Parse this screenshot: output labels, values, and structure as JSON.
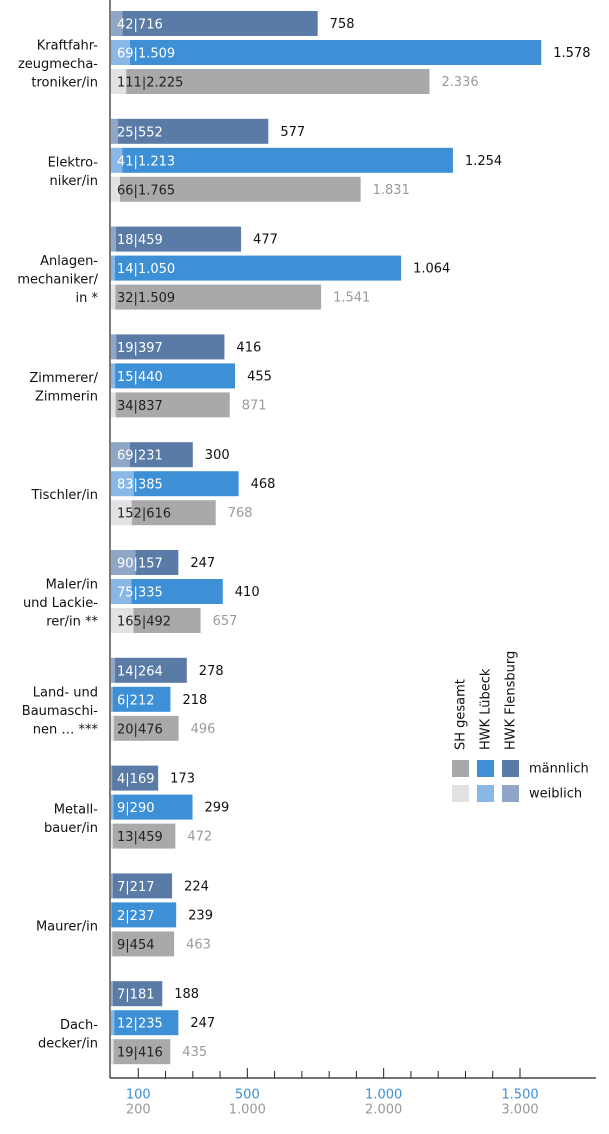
{
  "chart_data": {
    "type": "stacked-bar-horizontal",
    "categories": [
      [
        "Kraftfahr-",
        "zeugmecha-",
        "troniker/in"
      ],
      [
        "Elektro-",
        "niker/in"
      ],
      [
        "Anlagen-",
        "mechaniker/",
        "in *"
      ],
      [
        "Zimmerer/",
        "Zimmerin"
      ],
      [
        "Tischler/in"
      ],
      [
        "Maler/in",
        "und Lackie-",
        "rer/in **"
      ],
      [
        "Land- und",
        "Baumaschi-",
        "nen … ***"
      ],
      [
        "Metall-",
        "bauer/in"
      ],
      [
        "Maurer/in"
      ],
      [
        "Dach-",
        "decker/in"
      ]
    ],
    "separator": "|",
    "groups": [
      {
        "name": "HWK Flensburg",
        "axis": "x",
        "color_female": "#8fa6c6",
        "color_male": "#5a7ba6",
        "text_color": "#ffffff",
        "total_color": "#111111",
        "female": [
          42,
          25,
          18,
          19,
          69,
          90,
          14,
          4,
          7,
          7
        ],
        "male": [
          716,
          552,
          459,
          397,
          231,
          157,
          264,
          169,
          217,
          181
        ],
        "male_labels": [
          "716",
          "552",
          "459",
          "397",
          "231",
          "157",
          "264",
          "169",
          "217",
          "181"
        ],
        "totals": [
          758,
          577,
          477,
          416,
          300,
          247,
          278,
          173,
          224,
          188
        ],
        "total_labels": [
          "758",
          "577",
          "477",
          "416",
          "300",
          "247",
          "278",
          "173",
          "224",
          "188"
        ]
      },
      {
        "name": "HWK Lübeck",
        "axis": "x",
        "color_female": "#8ab8e6",
        "color_male": "#3d8fd6",
        "text_color": "#ffffff",
        "total_color": "#111111",
        "female": [
          69,
          41,
          14,
          15,
          83,
          75,
          6,
          9,
          2,
          12
        ],
        "male": [
          1509,
          1213,
          1050,
          440,
          385,
          335,
          212,
          290,
          237,
          235
        ],
        "male_labels": [
          "1.509",
          "1.213",
          "1.050",
          "440",
          "385",
          "335",
          "212",
          "290",
          "237",
          "235"
        ],
        "totals": [
          1578,
          1254,
          1064,
          455,
          468,
          410,
          218,
          299,
          239,
          247
        ],
        "total_labels": [
          "1.578",
          "1.254",
          "1.064",
          "455",
          "468",
          "410",
          "218",
          "299",
          "239",
          "247"
        ]
      },
      {
        "name": "SH gesamt",
        "axis": "x2",
        "color_female": "#e2e2e4",
        "color_male": "#a9a9ac",
        "text_color": "#222222",
        "total_color": "#9a9a9a",
        "female": [
          111,
          66,
          32,
          34,
          152,
          165,
          20,
          13,
          9,
          19
        ],
        "male": [
          2225,
          1765,
          1509,
          837,
          616,
          492,
          476,
          459,
          454,
          416
        ],
        "male_labels": [
          "2.225",
          "1.765",
          "1.509",
          "837",
          "616",
          "492",
          "476",
          "459",
          "454",
          "416"
        ],
        "totals": [
          2336,
          1831,
          1541,
          871,
          768,
          657,
          496,
          472,
          463,
          435
        ],
        "total_labels": [
          "2.336",
          "1.831",
          "1.541",
          "871",
          "768",
          "657",
          "496",
          "472",
          "463",
          "435"
        ]
      }
    ],
    "legend": [
      "männlich",
      "weiblich"
    ],
    "xlim": [
      0,
      1500
    ],
    "xticks": [
      100,
      500,
      {
        "value": 1000,
        "label": "1.000"
      },
      {
        "value": 1500,
        "label": "1.500"
      }
    ],
    "xminorticks": [
      200,
      300,
      400,
      600,
      700,
      800,
      900,
      1100,
      1200,
      1300,
      1400
    ],
    "x2lim": [
      0,
      3000
    ],
    "x2ticks": [
      200,
      {
        "value": 1000,
        "label": "1.000"
      },
      {
        "value": 2000,
        "label": "2.000"
      },
      {
        "value": 3000,
        "label": "3.000"
      }
    ],
    "xtick_color": "#3d8fd6",
    "x2tick_color": "#9a9a9a"
  }
}
